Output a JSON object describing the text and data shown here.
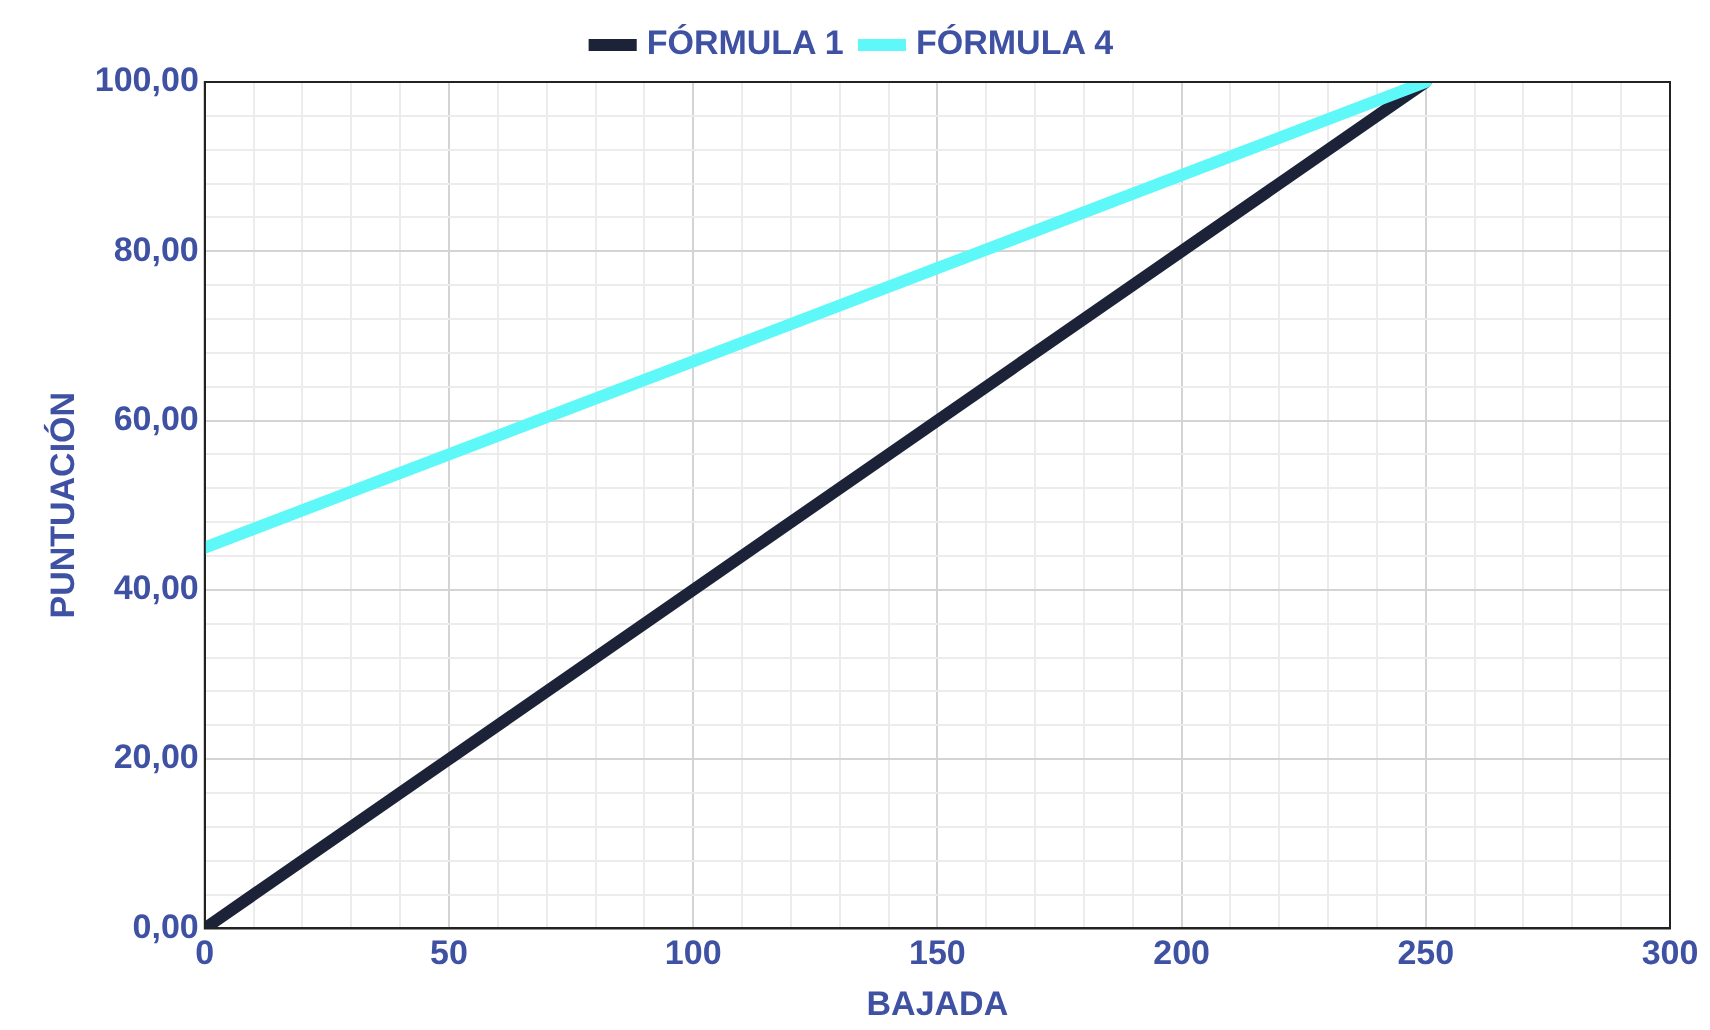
{
  "chart_data": {
    "type": "line",
    "xlabel": "BAJADA",
    "ylabel": "PUNTUACIÓN",
    "legend": "top",
    "grid": true,
    "marker": "none",
    "line_style": "solid",
    "xlim": [
      0,
      300
    ],
    "xticks": [
      0,
      {
        "value": 10,
        "label": null
      },
      {
        "value": 20,
        "label": null
      },
      {
        "value": 30,
        "label": null
      },
      {
        "value": 40,
        "label": null
      },
      50,
      {
        "value": 60,
        "label": null
      },
      {
        "value": 70,
        "label": null
      },
      {
        "value": 80,
        "label": null
      },
      {
        "value": 90,
        "label": null
      },
      100,
      {
        "value": 110,
        "label": null
      },
      {
        "value": 120,
        "label": null
      },
      {
        "value": 130,
        "label": null
      },
      {
        "value": 140,
        "label": null
      },
      150,
      {
        "value": 160,
        "label": null
      },
      {
        "value": 170,
        "label": null
      },
      {
        "value": 180,
        "label": null
      },
      {
        "value": 190,
        "label": null
      },
      200,
      {
        "value": 210,
        "label": null
      },
      {
        "value": 220,
        "label": null
      },
      {
        "value": 230,
        "label": null
      },
      {
        "value": 240,
        "label": null
      },
      250,
      {
        "value": 260,
        "label": null
      },
      {
        "value": 270,
        "label": null
      },
      {
        "value": 280,
        "label": null
      },
      {
        "value": 290,
        "label": null
      },
      300
    ],
    "ylim": [
      0,
      100
    ],
    "yticks": [
      {
        "value": 0,
        "label": "0,00"
      },
      {
        "value": 4,
        "label": null
      },
      {
        "value": 8,
        "label": null
      },
      {
        "value": 12,
        "label": null
      },
      {
        "value": 16,
        "label": null
      },
      {
        "value": 20,
        "label": "20,00"
      },
      {
        "value": 24,
        "label": null
      },
      {
        "value": 28,
        "label": null
      },
      {
        "value": 32,
        "label": null
      },
      {
        "value": 36,
        "label": null
      },
      {
        "value": 40,
        "label": "40,00"
      },
      {
        "value": 44,
        "label": null
      },
      {
        "value": 48,
        "label": null
      },
      {
        "value": 52,
        "label": null
      },
      {
        "value": 56,
        "label": null
      },
      {
        "value": 60,
        "label": "60,00"
      },
      {
        "value": 64,
        "label": null
      },
      {
        "value": 68,
        "label": null
      },
      {
        "value": 72,
        "label": null
      },
      {
        "value": 76,
        "label": null
      },
      {
        "value": 80,
        "label": "80,00"
      },
      {
        "value": 84,
        "label": null
      },
      {
        "value": 88,
        "label": null
      },
      {
        "value": 92,
        "label": null
      },
      {
        "value": 96,
        "label": null
      },
      {
        "value": 100,
        "label": "100,00"
      }
    ],
    "series": [
      {
        "name": "FÓRMULA 1",
        "color": "#1c2237",
        "x": [
          0,
          50,
          100,
          150,
          200,
          240,
          250
        ],
        "values": [
          0,
          20,
          40,
          60,
          80,
          96,
          100
        ]
      },
      {
        "name": "FÓRMULA 4",
        "color": "#5ff8f8",
        "x": [
          0,
          50,
          100,
          150,
          200,
          250
        ],
        "values": [
          45,
          56,
          67,
          78,
          89,
          100
        ]
      }
    ]
  }
}
